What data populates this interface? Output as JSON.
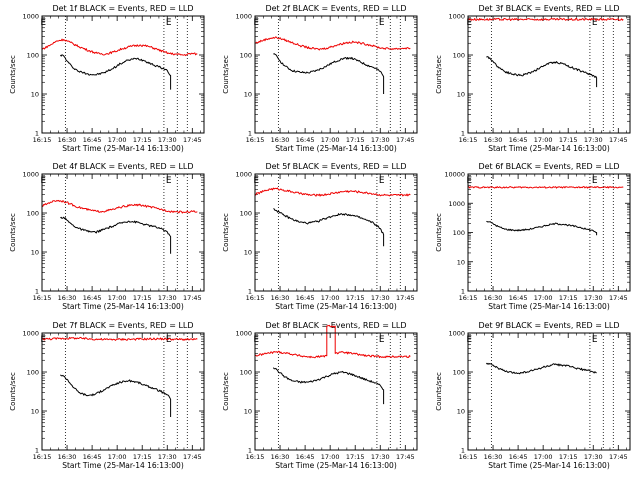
{
  "figure": {
    "time_ticks": [
      "16:15",
      "16:30",
      "16:45",
      "17:00",
      "17:15",
      "17:30",
      "17:45"
    ],
    "y_ticks": [
      "1",
      "10",
      "100",
      "1000"
    ],
    "ylabel": "Counts/sec",
    "xlabel": "Start Time (25-Mar-14 16:13:00)",
    "marker_label": "E",
    "colors": {
      "events": "#000000",
      "lld": "#ee0000",
      "axes": "#000000",
      "background": "#ffffff"
    }
  },
  "chart_data": [
    {
      "type": "line",
      "title": "Det 1f BLACK = Events, RED = LLD",
      "xlabel": "Start Time (25-Mar-14 16:13:00)",
      "ylabel": "Counts/sec",
      "ylim": [
        1,
        1000
      ],
      "yscale": "log",
      "xlim": [
        "16:15",
        "17:52"
      ],
      "vlines": [
        "16:29",
        "17:28",
        "17:36",
        "17:42"
      ],
      "series": [
        {
          "name": "Events",
          "color": "#000000",
          "x": [
            "16:26",
            "16:28",
            "16:30",
            "16:33",
            "16:37",
            "16:42",
            "16:47",
            "16:52",
            "16:57",
            "17:02",
            "17:07",
            "17:12",
            "17:17",
            "17:22",
            "17:26",
            "17:30",
            "17:32",
            "17:32"
          ],
          "values": [
            100,
            95,
            70,
            50,
            38,
            33,
            31,
            35,
            44,
            60,
            75,
            82,
            70,
            55,
            48,
            40,
            30,
            13
          ]
        },
        {
          "name": "LLD",
          "color": "#ee0000",
          "x": [
            "16:15",
            "16:20",
            "16:24",
            "16:28",
            "16:32",
            "16:37",
            "16:43",
            "16:48",
            "16:53",
            "16:58",
            "17:03",
            "17:09",
            "17:14",
            "17:19",
            "17:24",
            "17:28",
            "17:31",
            "17:35",
            "17:40",
            "17:45",
            "17:48"
          ],
          "values": [
            140,
            180,
            230,
            250,
            210,
            165,
            130,
            110,
            105,
            120,
            145,
            170,
            180,
            165,
            140,
            120,
            110,
            105,
            100,
            110,
            105
          ]
        }
      ]
    },
    {
      "type": "line",
      "title": "Det 2f BLACK = Events, RED = LLD",
      "xlabel": "Start Time (25-Mar-14 16:13:00)",
      "ylabel": "Counts/sec",
      "ylim": [
        1,
        1000
      ],
      "yscale": "log",
      "xlim": [
        "16:15",
        "17:52"
      ],
      "vlines": [
        "16:29",
        "17:28",
        "17:36",
        "17:42"
      ],
      "series": [
        {
          "name": "Events",
          "color": "#000000",
          "x": [
            "16:26",
            "16:28",
            "16:30",
            "16:33",
            "16:37",
            "16:42",
            "16:47",
            "16:52",
            "16:57",
            "17:02",
            "17:07",
            "17:12",
            "17:17",
            "17:22",
            "17:26",
            "17:30",
            "17:32",
            "17:32"
          ],
          "values": [
            105,
            95,
            70,
            52,
            40,
            36,
            35,
            40,
            50,
            65,
            80,
            85,
            70,
            55,
            48,
            38,
            28,
            10
          ]
        },
        {
          "name": "LLD",
          "color": "#ee0000",
          "x": [
            "16:15",
            "16:20",
            "16:24",
            "16:28",
            "16:32",
            "16:37",
            "16:43",
            "16:48",
            "16:53",
            "16:58",
            "17:03",
            "17:09",
            "17:14",
            "17:19",
            "17:24",
            "17:28",
            "17:31",
            "17:35",
            "17:40",
            "17:45",
            "17:48"
          ],
          "values": [
            200,
            240,
            270,
            280,
            250,
            210,
            170,
            150,
            140,
            150,
            175,
            205,
            215,
            200,
            180,
            160,
            150,
            145,
            145,
            150,
            150
          ]
        }
      ]
    },
    {
      "type": "line",
      "title": "Det 3f BLACK = Events, RED = LLD",
      "xlabel": "Start Time (25-Mar-14 16:13:00)",
      "ylabel": "Counts/sec",
      "ylim": [
        1,
        1000
      ],
      "yscale": "log",
      "xlim": [
        "16:15",
        "17:52"
      ],
      "vlines": [
        "16:29",
        "17:28",
        "17:36",
        "17:42"
      ],
      "series": [
        {
          "name": "Events",
          "color": "#000000",
          "x": [
            "16:26",
            "16:28",
            "16:30",
            "16:33",
            "16:37",
            "16:42",
            "16:47",
            "16:52",
            "16:57",
            "17:02",
            "17:07",
            "17:12",
            "17:17",
            "17:22",
            "17:26",
            "17:30",
            "17:32",
            "17:32"
          ],
          "values": [
            88,
            85,
            68,
            50,
            38,
            32,
            30,
            35,
            44,
            58,
            66,
            60,
            48,
            40,
            34,
            30,
            26,
            15
          ]
        },
        {
          "name": "LLD",
          "color": "#ee0000",
          "x": [
            "16:15",
            "16:30",
            "16:45",
            "17:00",
            "17:15",
            "17:30",
            "17:40",
            "17:48"
          ],
          "values": [
            820,
            820,
            815,
            820,
            815,
            820,
            815,
            818
          ]
        }
      ]
    },
    {
      "type": "line",
      "title": "Det 4f BLACK = Events, RED = LLD",
      "xlabel": "Start Time (25-Mar-14 16:13:00)",
      "ylabel": "Counts/sec",
      "ylim": [
        1,
        1000
      ],
      "yscale": "log",
      "xlim": [
        "16:15",
        "17:52"
      ],
      "vlines": [
        "16:29",
        "17:28",
        "17:36",
        "17:42"
      ],
      "series": [
        {
          "name": "Events",
          "color": "#000000",
          "x": [
            "16:26",
            "16:28",
            "16:30",
            "16:33",
            "16:37",
            "16:42",
            "16:47",
            "16:52",
            "16:57",
            "17:02",
            "17:07",
            "17:12",
            "17:17",
            "17:22",
            "17:26",
            "17:30",
            "17:32",
            "17:32"
          ],
          "values": [
            75,
            78,
            65,
            50,
            40,
            34,
            32,
            38,
            45,
            55,
            62,
            58,
            50,
            45,
            40,
            33,
            25,
            9
          ]
        },
        {
          "name": "LLD",
          "color": "#ee0000",
          "x": [
            "16:15",
            "16:20",
            "16:24",
            "16:28",
            "16:32",
            "16:37",
            "16:43",
            "16:48",
            "16:53",
            "16:58",
            "17:03",
            "17:09",
            "17:14",
            "17:19",
            "17:24",
            "17:28",
            "17:31",
            "17:35",
            "17:40",
            "17:45",
            "17:48"
          ],
          "values": [
            150,
            190,
            210,
            200,
            170,
            140,
            120,
            110,
            112,
            125,
            145,
            160,
            160,
            145,
            130,
            120,
            112,
            108,
            105,
            110,
            108
          ]
        }
      ]
    },
    {
      "type": "line",
      "title": "Det 5f BLACK = Events, RED = LLD",
      "xlabel": "Start Time (25-Mar-14 16:13:00)",
      "ylabel": "Counts/sec",
      "ylim": [
        1,
        1000
      ],
      "yscale": "log",
      "xlim": [
        "16:15",
        "17:52"
      ],
      "vlines": [
        "16:29",
        "17:28",
        "17:36",
        "17:42"
      ],
      "series": [
        {
          "name": "Events",
          "color": "#000000",
          "x": [
            "16:26",
            "16:28",
            "16:30",
            "16:33",
            "16:37",
            "16:42",
            "16:47",
            "16:52",
            "16:57",
            "17:02",
            "17:07",
            "17:12",
            "17:17",
            "17:22",
            "17:26",
            "17:30",
            "17:32",
            "17:32"
          ],
          "values": [
            130,
            115,
            100,
            85,
            70,
            58,
            55,
            60,
            72,
            85,
            95,
            90,
            78,
            65,
            55,
            40,
            28,
            14
          ]
        },
        {
          "name": "LLD",
          "color": "#ee0000",
          "x": [
            "16:15",
            "16:20",
            "16:24",
            "16:28",
            "16:32",
            "16:37",
            "16:43",
            "16:48",
            "16:53",
            "16:58",
            "17:03",
            "17:09",
            "17:14",
            "17:19",
            "17:24",
            "17:28",
            "17:31",
            "17:35",
            "17:40",
            "17:45",
            "17:48"
          ],
          "values": [
            300,
            360,
            410,
            420,
            390,
            350,
            310,
            290,
            285,
            300,
            330,
            360,
            360,
            340,
            320,
            300,
            290,
            285,
            285,
            290,
            290
          ]
        }
      ]
    },
    {
      "type": "line",
      "title": "Det 6f BLACK = Events, RED = LLD",
      "xlabel": "Start Time (25-Mar-14 16:13:00)",
      "ylabel": "Counts/sec",
      "ylim": [
        1,
        10000
      ],
      "yscale": "log",
      "xlim": [
        "16:15",
        "17:52"
      ],
      "vlines": [
        "16:29",
        "17:28",
        "17:36",
        "17:42"
      ],
      "series": [
        {
          "name": "Events",
          "color": "#000000",
          "x": [
            "16:26",
            "16:28",
            "16:30",
            "16:33",
            "16:37",
            "16:42",
            "16:47",
            "16:52",
            "16:57",
            "17:02",
            "17:07",
            "17:12",
            "17:17",
            "17:22",
            "17:26",
            "17:30",
            "17:32",
            "17:32"
          ],
          "values": [
            240,
            230,
            200,
            160,
            130,
            120,
            120,
            130,
            150,
            175,
            200,
            190,
            170,
            150,
            130,
            115,
            100,
            80
          ]
        },
        {
          "name": "LLD",
          "color": "#ee0000",
          "x": [
            "16:15",
            "16:30",
            "16:45",
            "17:00",
            "17:15",
            "17:30",
            "17:40",
            "17:48"
          ],
          "values": [
            3500,
            3500,
            3500,
            3500,
            3500,
            3500,
            3500,
            3500
          ]
        }
      ]
    },
    {
      "type": "line",
      "title": "Det 7f BLACK = Events, RED = LLD",
      "xlabel": "Start Time (25-Mar-14 16:13:00)",
      "ylabel": "Counts/sec",
      "ylim": [
        1,
        1000
      ],
      "yscale": "log",
      "xlim": [
        "16:15",
        "17:52"
      ],
      "vlines": [
        "16:29",
        "17:28",
        "17:36",
        "17:42"
      ],
      "series": [
        {
          "name": "Events",
          "color": "#000000",
          "x": [
            "16:26",
            "16:28",
            "16:30",
            "16:33",
            "16:37",
            "16:42",
            "16:47",
            "16:52",
            "16:57",
            "17:02",
            "17:07",
            "17:12",
            "17:17",
            "17:22",
            "17:26",
            "17:30",
            "17:32",
            "17:32"
          ],
          "values": [
            85,
            78,
            65,
            45,
            30,
            25,
            27,
            35,
            45,
            55,
            60,
            55,
            45,
            38,
            32,
            26,
            20,
            7
          ]
        },
        {
          "name": "LLD",
          "color": "#ee0000",
          "x": [
            "16:15",
            "16:25",
            "16:35",
            "16:45",
            "16:55",
            "17:05",
            "17:15",
            "17:25",
            "17:35",
            "17:45",
            "17:48"
          ],
          "values": [
            700,
            720,
            740,
            700,
            680,
            690,
            700,
            710,
            690,
            680,
            690
          ]
        }
      ]
    },
    {
      "type": "line",
      "title": "Det 8f BLACK = Events, RED = LLD",
      "xlabel": "Start Time (25-Mar-14 16:13:00)",
      "ylabel": "Counts/sec",
      "ylim": [
        1,
        1000
      ],
      "yscale": "log",
      "xlim": [
        "16:15",
        "17:52"
      ],
      "vlines": [
        "16:29",
        "17:28",
        "17:36",
        "17:42"
      ],
      "series": [
        {
          "name": "Events",
          "color": "#000000",
          "x": [
            "16:26",
            "16:28",
            "16:30",
            "16:33",
            "16:37",
            "16:42",
            "16:47",
            "16:52",
            "16:57",
            "17:02",
            "17:07",
            "17:12",
            "17:17",
            "17:22",
            "17:26",
            "17:30",
            "17:32",
            "17:32"
          ],
          "values": [
            130,
            115,
            95,
            75,
            60,
            55,
            55,
            62,
            75,
            90,
            100,
            90,
            75,
            62,
            55,
            45,
            35,
            15
          ]
        },
        {
          "name": "LLD",
          "color": "#ee0000",
          "x": [
            "16:15",
            "16:22",
            "16:28",
            "16:35",
            "16:42",
            "16:49",
            "16:55",
            "16:58",
            "16:58",
            "17:03",
            "17:03",
            "17:08",
            "17:15",
            "17:22",
            "17:28",
            "17:35",
            "17:42",
            "17:48"
          ],
          "values": [
            260,
            300,
            330,
            300,
            260,
            240,
            250,
            260,
            1500,
            1500,
            300,
            320,
            290,
            260,
            250,
            245,
            250,
            250
          ]
        }
      ]
    },
    {
      "type": "line",
      "title": "Det 9f BLACK = Events, RED = LLD",
      "xlabel": "Start Time (25-Mar-14 16:13:00)",
      "ylabel": "Counts/sec",
      "ylim": [
        1,
        1000
      ],
      "yscale": "log",
      "xlim": [
        "16:15",
        "17:52"
      ],
      "vlines": [
        "16:29",
        "17:28",
        "17:36",
        "17:42"
      ],
      "series": [
        {
          "name": "Events",
          "color": "#000000",
          "x": [
            "16:26",
            "16:28",
            "16:30",
            "16:33",
            "16:37",
            "16:42",
            "16:47",
            "16:52",
            "16:57",
            "17:02",
            "17:07",
            "17:12",
            "17:17",
            "17:22",
            "17:26",
            "17:30",
            "17:32"
          ],
          "values": [
            170,
            165,
            150,
            125,
            105,
            95,
            95,
            105,
            120,
            140,
            155,
            150,
            135,
            120,
            110,
            100,
            95
          ]
        }
      ]
    }
  ]
}
